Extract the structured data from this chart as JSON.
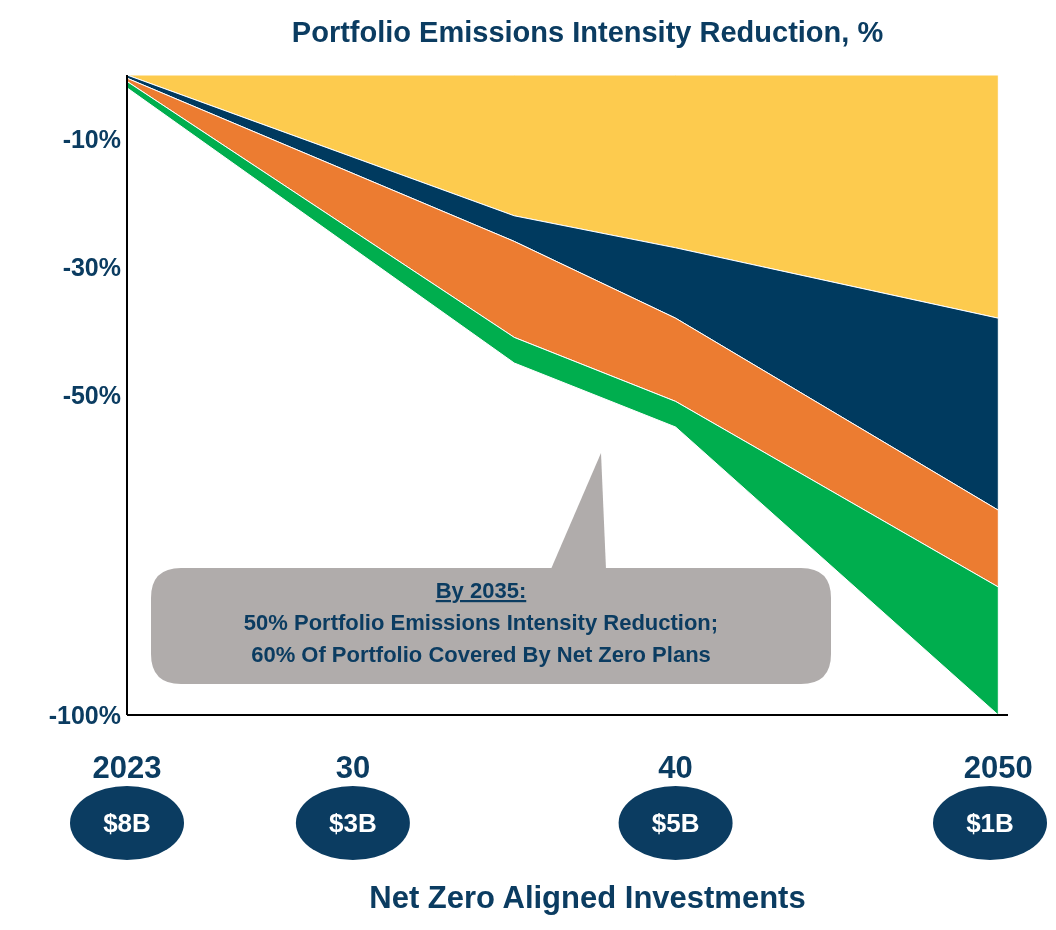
{
  "chart_data": {
    "type": "area",
    "stacked": true,
    "title": "Portfolio Emissions Intensity Reduction, %",
    "xlabel": "Net Zero Aligned Investments",
    "x": [
      2023,
      2035,
      2040,
      2050
    ],
    "xlim": [
      2023,
      2050.3
    ],
    "xticks": [
      2023,
      {
        "value": 2030,
        "label": "30"
      },
      {
        "value": 2040,
        "label": "40"
      },
      2050
    ],
    "ylim": [
      -100,
      0
    ],
    "yticks": [
      {
        "value": -10,
        "label": "-10%"
      },
      {
        "value": -30,
        "label": "-30%"
      },
      {
        "value": -50,
        "label": "-50%"
      },
      {
        "value": -100,
        "label": "-100%"
      }
    ],
    "series": [
      {
        "color": "#fdcb4e",
        "values": [
          0,
          -22,
          -27,
          -38
        ]
      },
      {
        "color": "#003a5f",
        "values": [
          -0.5,
          -4,
          -11,
          -30
        ]
      },
      {
        "color": "#ec7c31",
        "values": [
          -0.5,
          -15,
          -13,
          -12
        ]
      },
      {
        "color": "#00ae4e",
        "values": [
          -1,
          -4,
          -4,
          -20
        ]
      }
    ],
    "grid": false,
    "annotations": [
      "By 2035:\n50% Portfolio Emissions Intensity Reduction;\n60% Of Portfolio Covered By Net Zero Plans",
      "$8B",
      "$3B",
      "$5B",
      "$1B"
    ]
  }
}
